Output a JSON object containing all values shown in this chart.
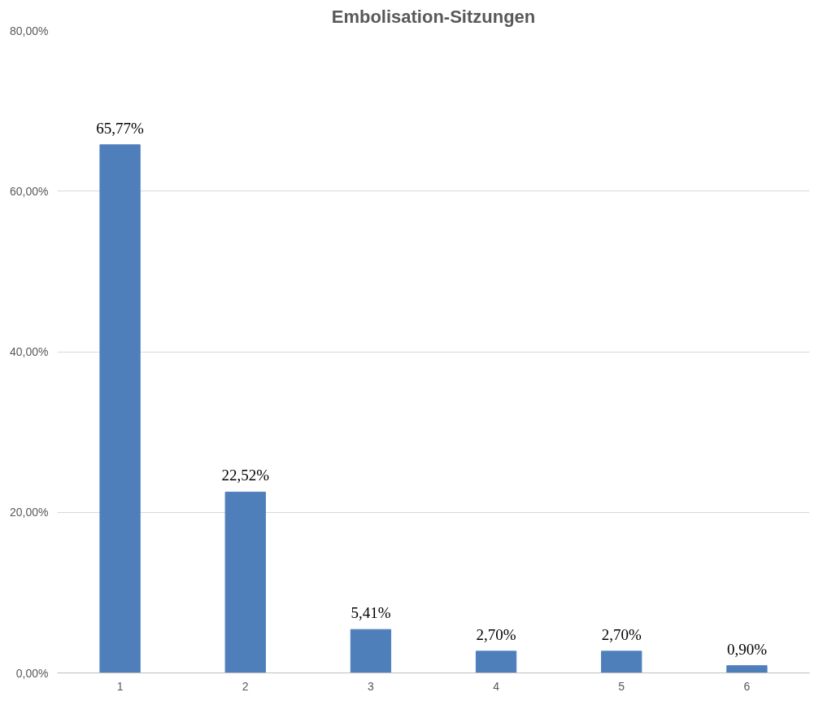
{
  "chart_data": {
    "type": "bar",
    "title": "Embolisation-Sitzungen",
    "categories": [
      "1",
      "2",
      "3",
      "4",
      "5",
      "6"
    ],
    "values": [
      65.77,
      22.52,
      5.41,
      2.7,
      2.7,
      0.9
    ],
    "value_labels": [
      "65,77%",
      "22,52%",
      "5,41%",
      "2,70%",
      "2,70%",
      "0,90%"
    ],
    "color": "#4f7fbb",
    "ylim": [
      0,
      80
    ],
    "yticks": [
      {
        "value": 0,
        "label": "0,00%"
      },
      {
        "value": 20,
        "label": "20,00%"
      },
      {
        "value": 40,
        "label": "40,00%"
      },
      {
        "value": 60,
        "label": "60,00%"
      },
      {
        "value": 80,
        "label": "80,00%"
      }
    ],
    "grid": "y"
  }
}
